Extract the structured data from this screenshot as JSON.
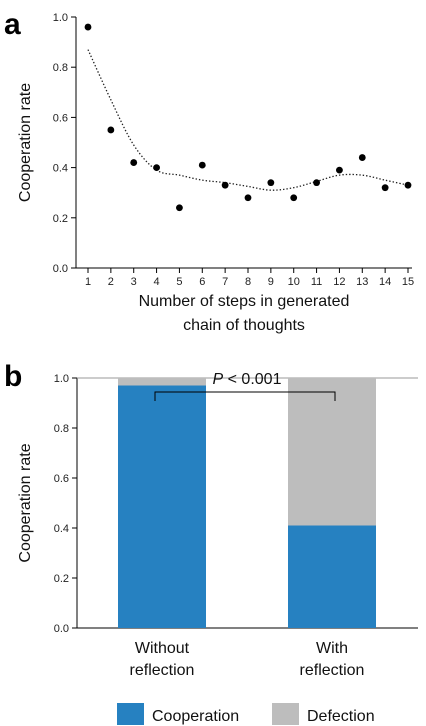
{
  "panels": {
    "a": {
      "letter": "a"
    },
    "b": {
      "letter": "b"
    }
  },
  "chart_data": [
    {
      "type": "scatter",
      "xlabel_lines": [
        "Number of steps in generated",
        "chain of thoughts"
      ],
      "ylabel": "Cooperation rate",
      "xlim": [
        1,
        15
      ],
      "ylim": [
        0,
        1
      ],
      "x_ticks": [
        1,
        2,
        3,
        4,
        5,
        6,
        7,
        8,
        9,
        10,
        11,
        12,
        13,
        14,
        15
      ],
      "y_ticks": [
        "0.0",
        "0.2",
        "0.4",
        "0.6",
        "0.8",
        "1.0"
      ],
      "grid": false,
      "series": [
        {
          "kind": "points",
          "x": [
            1,
            2,
            3,
            4,
            5,
            6,
            7,
            8,
            9,
            10,
            11,
            12,
            13,
            14,
            15
          ],
          "y": [
            0.96,
            0.55,
            0.42,
            0.4,
            0.24,
            0.41,
            0.33,
            0.28,
            0.34,
            0.28,
            0.34,
            0.39,
            0.44,
            0.32,
            0.33
          ],
          "color": "#000000"
        },
        {
          "kind": "trend",
          "style": "dotted",
          "x": [
            1,
            2,
            3,
            4,
            5,
            6,
            7,
            8,
            9,
            10,
            11,
            12,
            13,
            14,
            15
          ],
          "y": [
            0.87,
            0.67,
            0.49,
            0.39,
            0.37,
            0.35,
            0.34,
            0.325,
            0.31,
            0.32,
            0.345,
            0.37,
            0.37,
            0.35,
            0.33
          ],
          "color": "#222222"
        }
      ]
    },
    {
      "type": "bar",
      "stacked": true,
      "categories": [
        [
          "Without",
          "reflection"
        ],
        [
          "With",
          "reflection"
        ]
      ],
      "ylabel": "Cooperation rate",
      "ylim": [
        0,
        1
      ],
      "y_ticks": [
        "0.0",
        "0.2",
        "0.4",
        "0.6",
        "0.8",
        "1.0"
      ],
      "reference_line": 1.0,
      "series": [
        {
          "name": "Cooperation",
          "values": [
            0.97,
            0.41
          ],
          "color": "#2681c1"
        },
        {
          "name": "Defection",
          "values": [
            0.03,
            0.59
          ],
          "color": "#bdbdbd"
        }
      ],
      "annotation": {
        "italic": "P",
        "rest": " < 0.001"
      },
      "legend_position": "bottom"
    }
  ]
}
